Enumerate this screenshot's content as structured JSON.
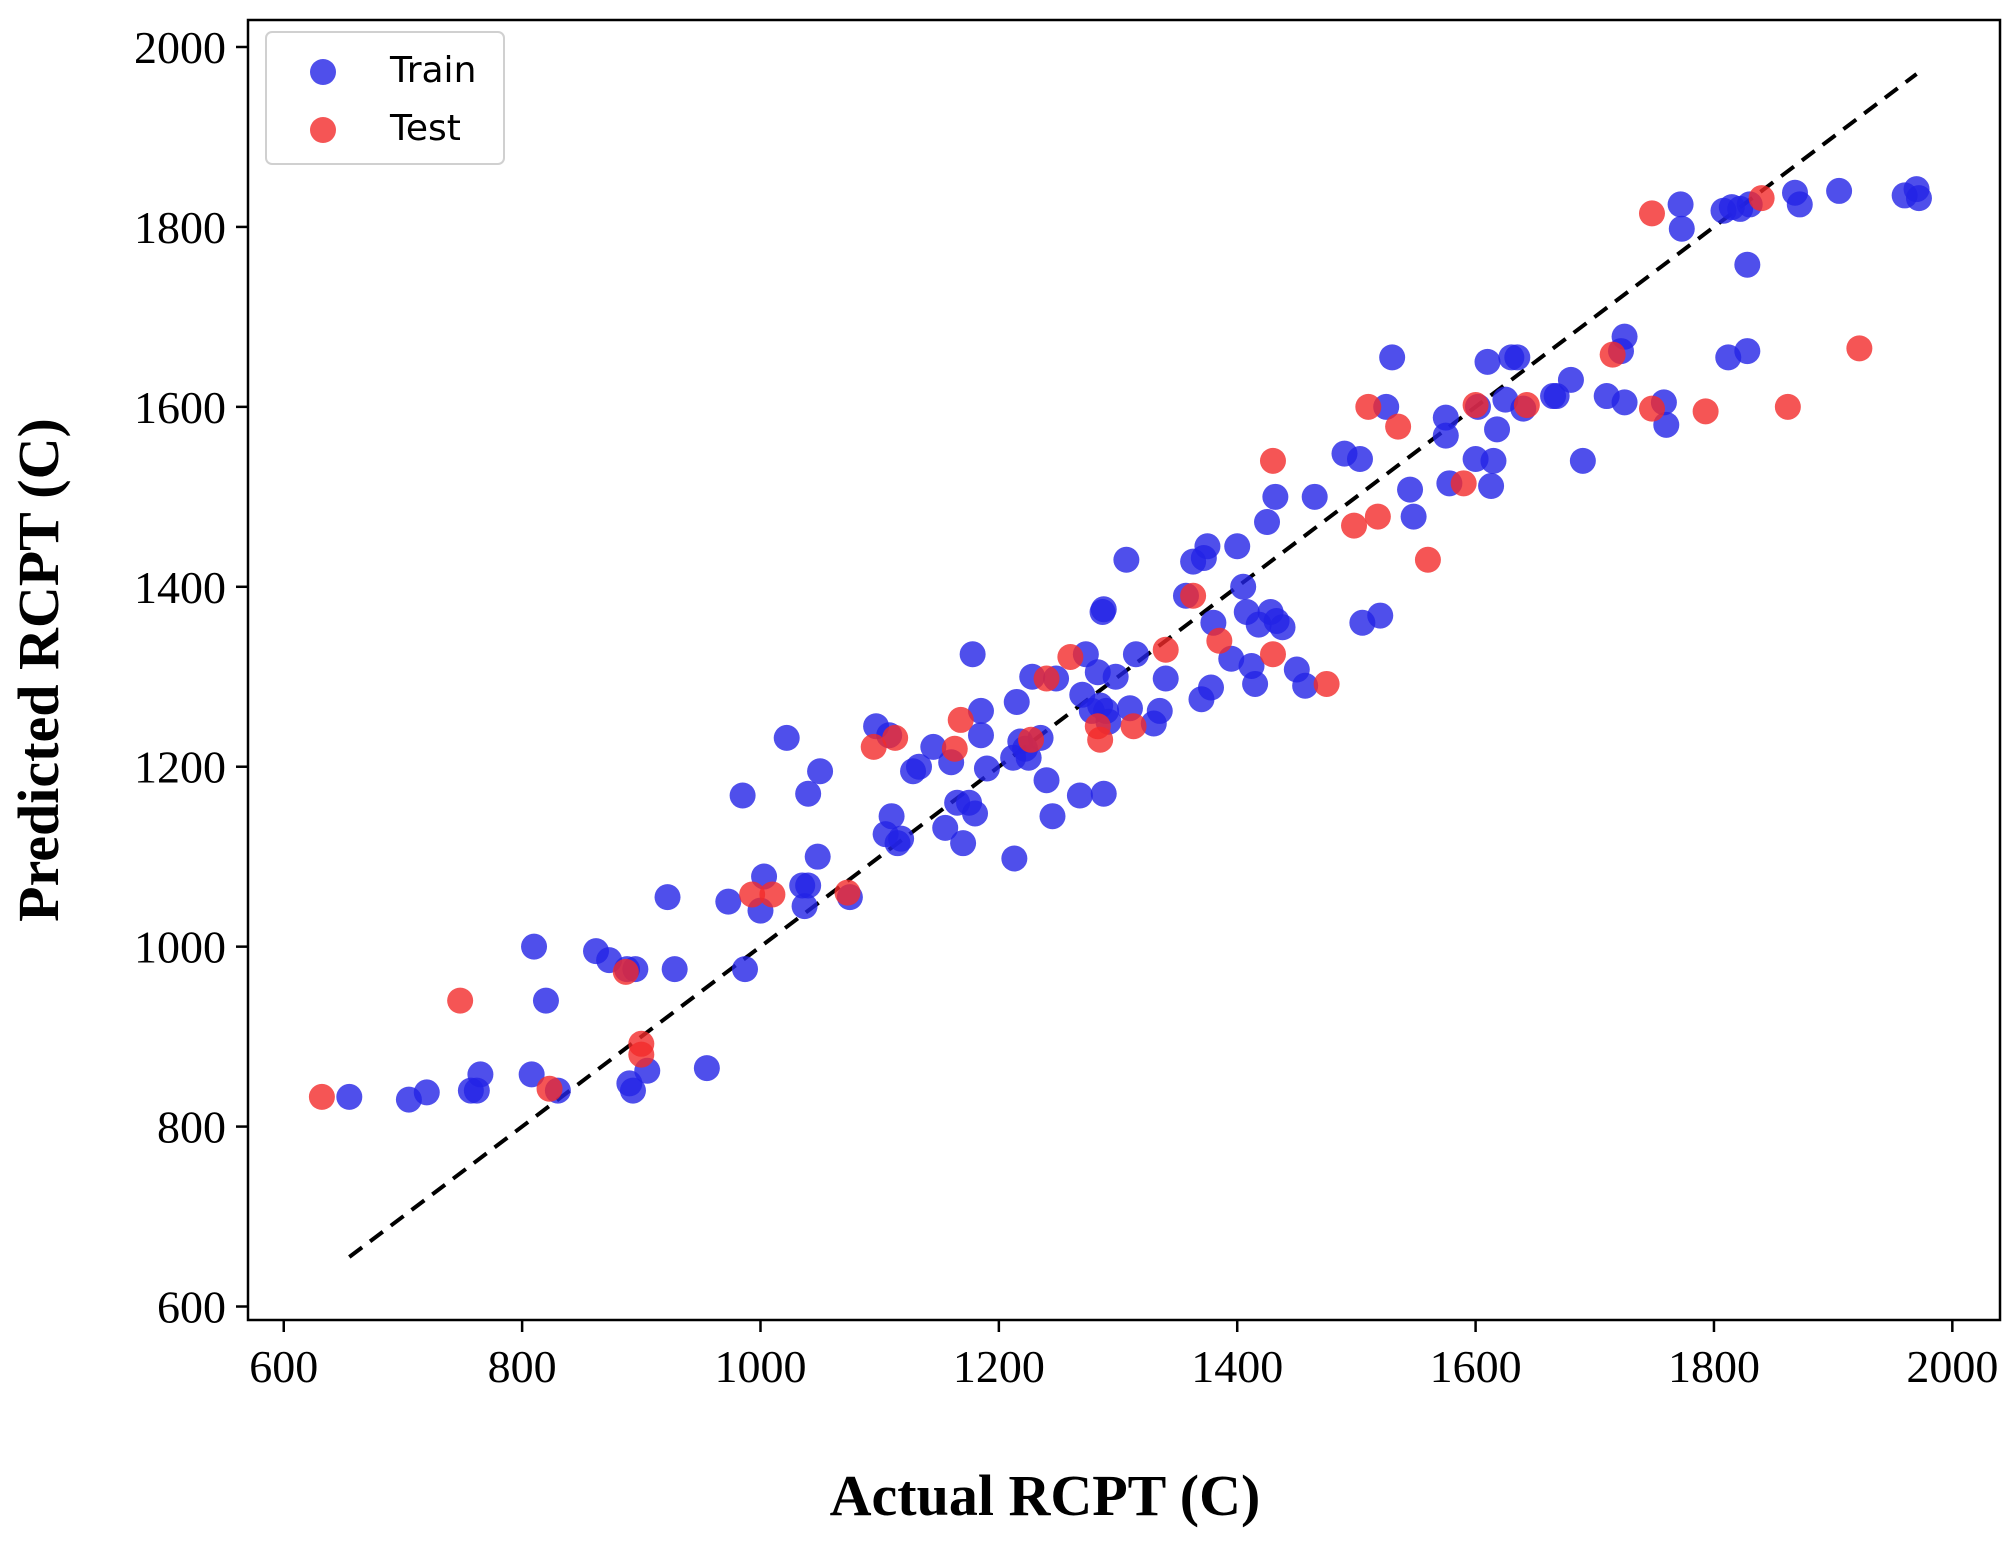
{
  "chart_data": {
    "type": "scatter",
    "xlabel": "Actual RCPT (C)",
    "ylabel": "Predicted RCPT (C)",
    "xlim": [
      570,
      2040
    ],
    "ylim": [
      585,
      2030
    ],
    "xticks": [
      600,
      800,
      1000,
      1200,
      1400,
      1600,
      1800,
      2000
    ],
    "yticks": [
      600,
      800,
      1000,
      1200,
      1400,
      1600,
      1800,
      2000
    ],
    "xtick_labels": [
      "600",
      "800",
      "1000",
      "1200",
      "1400",
      "1600",
      "1800",
      "2000"
    ],
    "ytick_labels": [
      "600",
      "800",
      "1000",
      "1200",
      "1400",
      "1600",
      "1800",
      "2000"
    ],
    "legend_position": "top-left",
    "grid": false,
    "reference_line": {
      "style": "dashed",
      "color": "#000000",
      "x": [
        655,
        1970
      ],
      "y": [
        655,
        1970
      ]
    },
    "series": [
      {
        "name": "Train",
        "color": "#2323e6",
        "points": [
          [
            655,
            833
          ],
          [
            705,
            830
          ],
          [
            720,
            838
          ],
          [
            757,
            840
          ],
          [
            762,
            840
          ],
          [
            765,
            858
          ],
          [
            808,
            858
          ],
          [
            810,
            1000
          ],
          [
            820,
            940
          ],
          [
            830,
            840
          ],
          [
            862,
            995
          ],
          [
            873,
            985
          ],
          [
            888,
            975
          ],
          [
            890,
            848
          ],
          [
            893,
            840
          ],
          [
            895,
            975
          ],
          [
            905,
            862
          ],
          [
            922,
            1055
          ],
          [
            928,
            975
          ],
          [
            955,
            865
          ],
          [
            973,
            1050
          ],
          [
            985,
            1168
          ],
          [
            987,
            975
          ],
          [
            1000,
            1040
          ],
          [
            1003,
            1078
          ],
          [
            1022,
            1232
          ],
          [
            1035,
            1068
          ],
          [
            1037,
            1045
          ],
          [
            1040,
            1068
          ],
          [
            1040,
            1170
          ],
          [
            1048,
            1100
          ],
          [
            1050,
            1195
          ],
          [
            1075,
            1055
          ],
          [
            1097,
            1245
          ],
          [
            1105,
            1125
          ],
          [
            1108,
            1235
          ],
          [
            1110,
            1145
          ],
          [
            1115,
            1115
          ],
          [
            1118,
            1120
          ],
          [
            1128,
            1195
          ],
          [
            1133,
            1200
          ],
          [
            1145,
            1222
          ],
          [
            1155,
            1132
          ],
          [
            1160,
            1205
          ],
          [
            1165,
            1160
          ],
          [
            1170,
            1115
          ],
          [
            1175,
            1160
          ],
          [
            1178,
            1325
          ],
          [
            1180,
            1148
          ],
          [
            1185,
            1235
          ],
          [
            1185,
            1262
          ],
          [
            1190,
            1198
          ],
          [
            1212,
            1210
          ],
          [
            1213,
            1098
          ],
          [
            1215,
            1272
          ],
          [
            1218,
            1228
          ],
          [
            1222,
            1220
          ],
          [
            1225,
            1210
          ],
          [
            1228,
            1300
          ],
          [
            1235,
            1232
          ],
          [
            1240,
            1185
          ],
          [
            1245,
            1145
          ],
          [
            1248,
            1298
          ],
          [
            1268,
            1168
          ],
          [
            1270,
            1280
          ],
          [
            1273,
            1325
          ],
          [
            1278,
            1262
          ],
          [
            1283,
            1305
          ],
          [
            1285,
            1268
          ],
          [
            1287,
            1372
          ],
          [
            1288,
            1375
          ],
          [
            1288,
            1170
          ],
          [
            1290,
            1262
          ],
          [
            1292,
            1250
          ],
          [
            1298,
            1300
          ],
          [
            1307,
            1430
          ],
          [
            1310,
            1265
          ],
          [
            1315,
            1325
          ],
          [
            1330,
            1248
          ],
          [
            1335,
            1262
          ],
          [
            1340,
            1298
          ],
          [
            1357,
            1390
          ],
          [
            1363,
            1428
          ],
          [
            1370,
            1275
          ],
          [
            1372,
            1432
          ],
          [
            1375,
            1445
          ],
          [
            1378,
            1288
          ],
          [
            1380,
            1360
          ],
          [
            1395,
            1320
          ],
          [
            1400,
            1445
          ],
          [
            1405,
            1400
          ],
          [
            1408,
            1372
          ],
          [
            1412,
            1312
          ],
          [
            1415,
            1292
          ],
          [
            1418,
            1358
          ],
          [
            1425,
            1472
          ],
          [
            1428,
            1372
          ],
          [
            1432,
            1500
          ],
          [
            1433,
            1362
          ],
          [
            1438,
            1355
          ],
          [
            1450,
            1308
          ],
          [
            1457,
            1290
          ],
          [
            1465,
            1500
          ],
          [
            1490,
            1548
          ],
          [
            1503,
            1542
          ],
          [
            1505,
            1360
          ],
          [
            1520,
            1368
          ],
          [
            1525,
            1600
          ],
          [
            1530,
            1655
          ],
          [
            1545,
            1508
          ],
          [
            1548,
            1478
          ],
          [
            1575,
            1588
          ],
          [
            1575,
            1568
          ],
          [
            1578,
            1515
          ],
          [
            1600,
            1542
          ],
          [
            1602,
            1600
          ],
          [
            1610,
            1650
          ],
          [
            1613,
            1512
          ],
          [
            1615,
            1540
          ],
          [
            1618,
            1575
          ],
          [
            1625,
            1608
          ],
          [
            1630,
            1655
          ],
          [
            1635,
            1655
          ],
          [
            1640,
            1598
          ],
          [
            1665,
            1612
          ],
          [
            1668,
            1612
          ],
          [
            1680,
            1630
          ],
          [
            1690,
            1540
          ],
          [
            1710,
            1612
          ],
          [
            1722,
            1662
          ],
          [
            1725,
            1678
          ],
          [
            1725,
            1605
          ],
          [
            1758,
            1605
          ],
          [
            1760,
            1580
          ],
          [
            1772,
            1825
          ],
          [
            1773,
            1798
          ],
          [
            1808,
            1818
          ],
          [
            1812,
            1655
          ],
          [
            1815,
            1822
          ],
          [
            1822,
            1820
          ],
          [
            1828,
            1662
          ],
          [
            1828,
            1758
          ],
          [
            1830,
            1825
          ],
          [
            1868,
            1838
          ],
          [
            1872,
            1825
          ],
          [
            1905,
            1840
          ],
          [
            1960,
            1835
          ],
          [
            1970,
            1842
          ],
          [
            1972,
            1832
          ]
        ]
      },
      {
        "name": "Test",
        "color": "#f22a2a",
        "points": [
          [
            632,
            833
          ],
          [
            748,
            940
          ],
          [
            823,
            842
          ],
          [
            887,
            972
          ],
          [
            900,
            892
          ],
          [
            900,
            880
          ],
          [
            993,
            1058
          ],
          [
            1010,
            1058
          ],
          [
            1073,
            1060
          ],
          [
            1095,
            1222
          ],
          [
            1113,
            1232
          ],
          [
            1163,
            1220
          ],
          [
            1168,
            1252
          ],
          [
            1227,
            1230
          ],
          [
            1240,
            1298
          ],
          [
            1260,
            1322
          ],
          [
            1283,
            1245
          ],
          [
            1285,
            1230
          ],
          [
            1313,
            1245
          ],
          [
            1340,
            1330
          ],
          [
            1363,
            1390
          ],
          [
            1385,
            1340
          ],
          [
            1430,
            1540
          ],
          [
            1430,
            1325
          ],
          [
            1475,
            1292
          ],
          [
            1498,
            1468
          ],
          [
            1510,
            1600
          ],
          [
            1518,
            1478
          ],
          [
            1535,
            1578
          ],
          [
            1560,
            1430
          ],
          [
            1590,
            1515
          ],
          [
            1600,
            1602
          ],
          [
            1643,
            1602
          ],
          [
            1715,
            1658
          ],
          [
            1748,
            1598
          ],
          [
            1748,
            1815
          ],
          [
            1793,
            1595
          ],
          [
            1840,
            1832
          ],
          [
            1862,
            1600
          ],
          [
            1922,
            1665
          ]
        ]
      }
    ]
  }
}
